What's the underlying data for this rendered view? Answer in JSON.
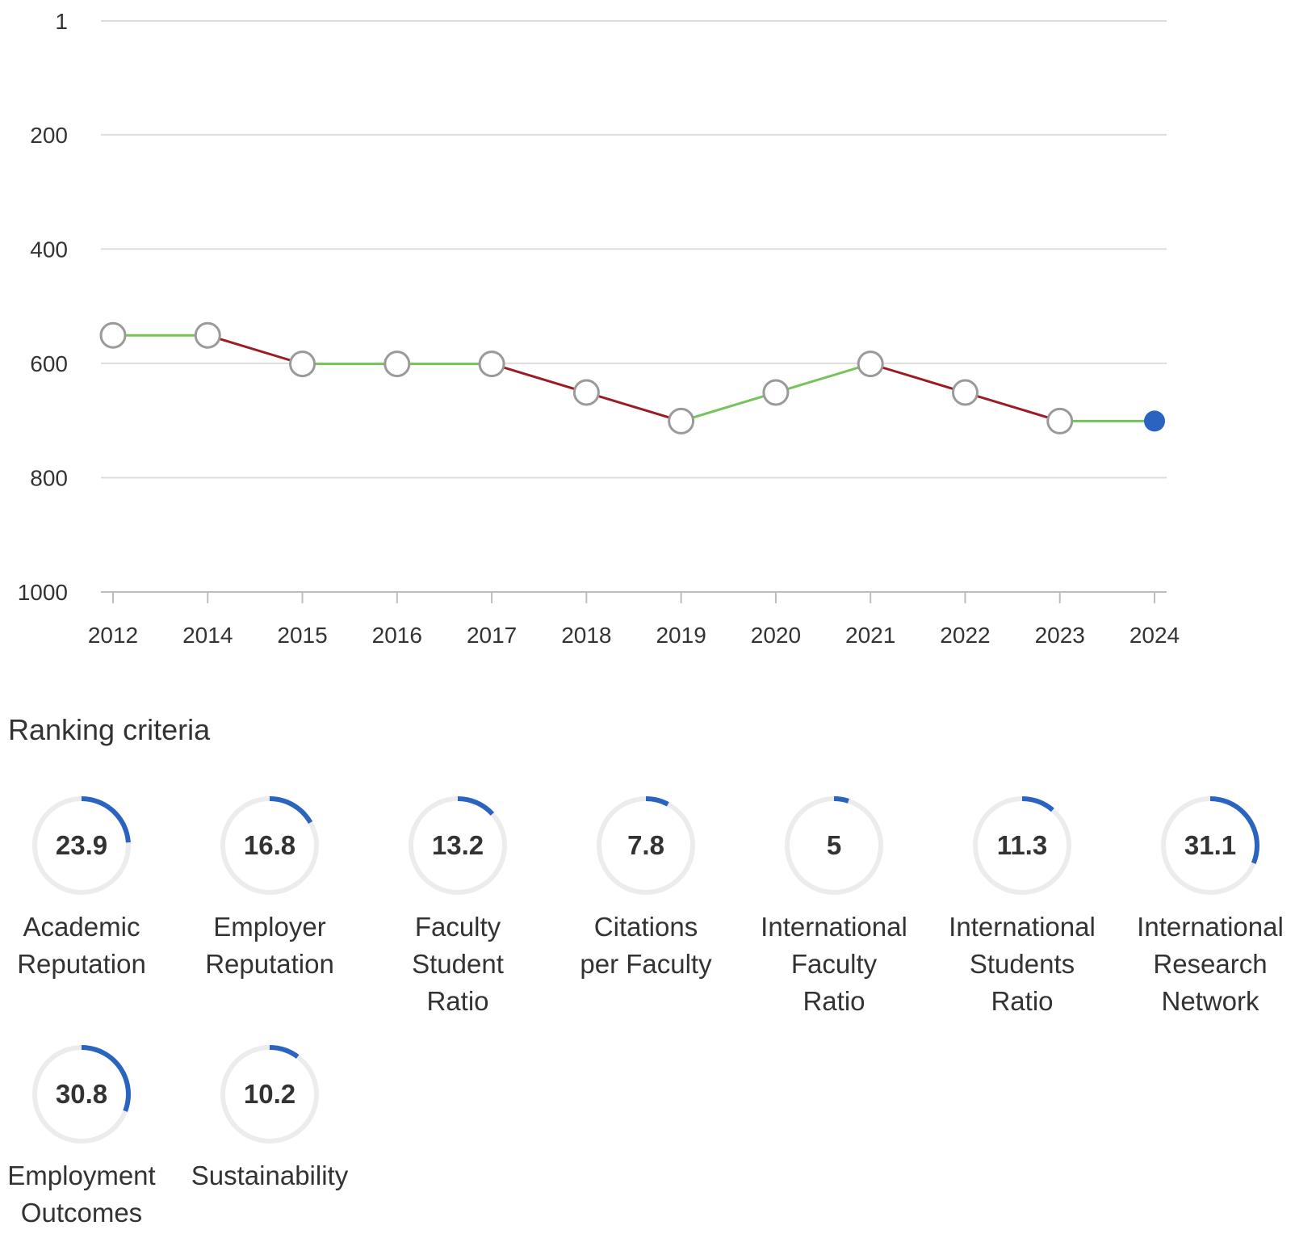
{
  "chart_data": {
    "type": "line",
    "title": "",
    "xlabel": "",
    "ylabel": "",
    "y_axis_reversed": true,
    "ylim": [
      1,
      1000
    ],
    "y_ticks": [
      1,
      200,
      400,
      600,
      800,
      1000
    ],
    "grid": true,
    "categories": [
      "2012",
      "2014",
      "2015",
      "2016",
      "2017",
      "2018",
      "2019",
      "2020",
      "2021",
      "2022",
      "2023",
      "2024"
    ],
    "values": [
      551,
      551,
      601,
      601,
      601,
      651,
      701,
      651,
      601,
      651,
      701,
      701
    ],
    "colors": {
      "segment_decline": "#9b1c24",
      "segment_improve_or_equal": "#76c35a",
      "point_fill": "#ffffff",
      "point_stroke": "#9a9a9a",
      "current_point": "#2a63c0",
      "grid": "#dddddd"
    }
  },
  "criteria": {
    "title": "Ranking criteria",
    "items": [
      {
        "value": "23.9",
        "label": "Academic\nReputation"
      },
      {
        "value": "16.8",
        "label": "Employer\nReputation"
      },
      {
        "value": "13.2",
        "label": "Faculty\nStudent\nRatio"
      },
      {
        "value": "7.8",
        "label": "Citations\nper Faculty"
      },
      {
        "value": "5",
        "label": "International\nFaculty\nRatio"
      },
      {
        "value": "11.3",
        "label": "International\nStudents\nRatio"
      },
      {
        "value": "31.1",
        "label": "International\nResearch\nNetwork"
      },
      {
        "value": "30.8",
        "label": "Employment\nOutcomes"
      },
      {
        "value": "10.2",
        "label": "Sustainability"
      }
    ],
    "gauge_max": 100,
    "colors": {
      "track": "#ececec",
      "fill": "#2a63c0"
    }
  }
}
